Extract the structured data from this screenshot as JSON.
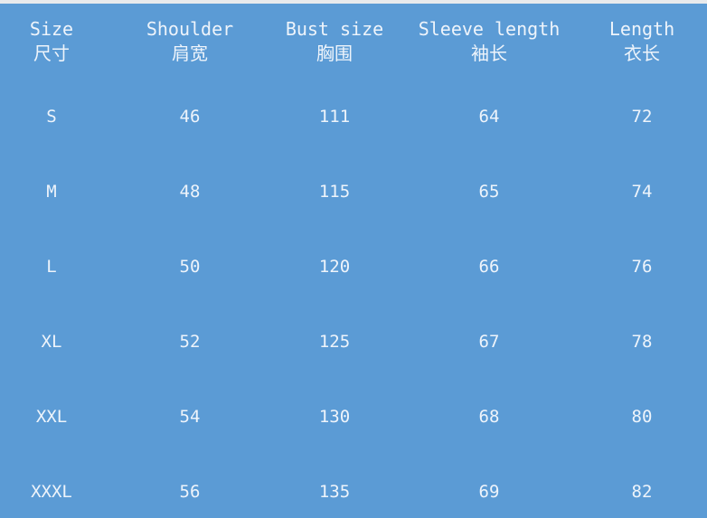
{
  "table": {
    "headers": [
      {
        "en": "Size",
        "zh": "尺寸"
      },
      {
        "en": "Shoulder",
        "zh": "肩宽"
      },
      {
        "en": "Bust size",
        "zh": "胸围"
      },
      {
        "en": "Sleeve length",
        "zh": "袖长"
      },
      {
        "en": "Length",
        "zh": "衣长"
      }
    ],
    "rows": [
      [
        "S",
        "46",
        "111",
        "64",
        "72"
      ],
      [
        "M",
        "48",
        "115",
        "65",
        "74"
      ],
      [
        "L",
        "50",
        "120",
        "66",
        "76"
      ],
      [
        "XL",
        "52",
        "125",
        "67",
        "78"
      ],
      [
        "XXL",
        "54",
        "130",
        "68",
        "80"
      ],
      [
        "XXXL",
        "56",
        "135",
        "69",
        "82"
      ]
    ]
  },
  "colors": {
    "background": "#5b9bd5",
    "text": "#eef4fb"
  }
}
